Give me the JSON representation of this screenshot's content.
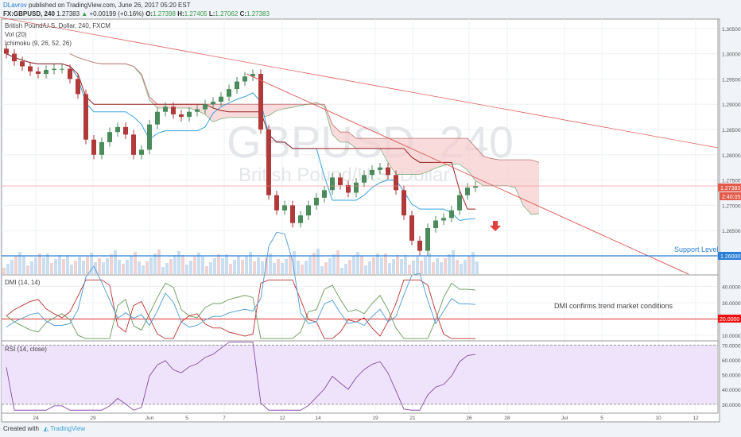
{
  "header": {
    "author": "DLavrov",
    "published": "published on TradingView.com, June 26, 2017 05:20 EST",
    "symbol": "FX:GBPUSD, 240",
    "last": "1.27383",
    "change": "+0.00199 (+0.16%)",
    "o_label": "O:",
    "o": "1.27398",
    "h_label": "H:",
    "h": "1.27405",
    "l_label": "L:",
    "l": "1.27062",
    "c_label": "C:",
    "c": "1.27383"
  },
  "legend": {
    "title": "British Pound/U.S. Dollar, 240, FXCM",
    "vol": "Vol (20)",
    "ichimoku": "Ichimoku (9, 26, 52, 26)",
    "dmi": "DMI (14, 14)",
    "rsi": "RSI (14, close)"
  },
  "watermark": {
    "symbol": "GBPUSD, 240",
    "name": "British Pound/U.S. Dollar"
  },
  "annotations": {
    "support": "Support Level",
    "dmi_note": "DMI confirms trend market conditions"
  },
  "badges": {
    "last_price": "1.27383",
    "countdown": "2:40:05",
    "support_price": "1.26000",
    "dmi_level": "20.0000"
  },
  "footer": {
    "created": "Created with",
    "brand": "TradingView"
  },
  "colors": {
    "up": "#4b8b5b",
    "down": "#b03a3a",
    "accent": "#2b7fd6",
    "trend": "#e06060",
    "rsi_fill": "#efe3fb"
  },
  "chart_data": {
    "type": "candlestick",
    "interval": "240",
    "price_ticks": [
      "1.30500",
      "1.30000",
      "1.29500",
      "1.29000",
      "1.28500",
      "1.28000",
      "1.27500",
      "1.27000",
      "1.26500",
      "1.26000"
    ],
    "price_ylim": [
      1.2575,
      1.3055
    ],
    "x_ticks": [
      "24",
      "29",
      "Jun",
      "5",
      "7",
      "12",
      "14",
      "19",
      "21",
      "26",
      "28",
      "Jul",
      "5",
      "10",
      "12"
    ],
    "closes": [
      1.3,
      1.2985,
      1.2975,
      1.2965,
      1.296,
      1.2968,
      1.297,
      1.297,
      1.295,
      1.292,
      1.283,
      1.28,
      1.2825,
      1.2845,
      1.2855,
      1.284,
      1.28,
      1.281,
      1.286,
      1.2885,
      1.2895,
      1.288,
      1.2875,
      1.2885,
      1.289,
      1.29,
      1.2905,
      1.2915,
      1.293,
      1.2945,
      1.2955,
      1.296,
      1.285,
      1.272,
      1.269,
      1.27,
      1.2665,
      1.268,
      1.27,
      1.2715,
      1.273,
      1.2755,
      1.274,
      1.2725,
      1.2745,
      1.276,
      1.277,
      1.2775,
      1.276,
      1.273,
      1.268,
      1.263,
      1.261,
      1.2655,
      1.267,
      1.2675,
      1.269,
      1.272,
      1.2735,
      1.2738
    ],
    "horizontal_levels": {
      "support": 1.26,
      "last": 1.27383
    },
    "dmi": {
      "ticks": [
        "40.0000",
        "30.0000",
        "20.0000",
        "10.0000"
      ],
      "ylim": [
        5,
        45
      ],
      "level": 20
    },
    "rsi": {
      "ticks": [
        "70.0000",
        "60.0000",
        "50.0000",
        "40.0000",
        "30.0000"
      ],
      "ylim": [
        25,
        72
      ],
      "band": [
        30,
        70
      ]
    }
  }
}
